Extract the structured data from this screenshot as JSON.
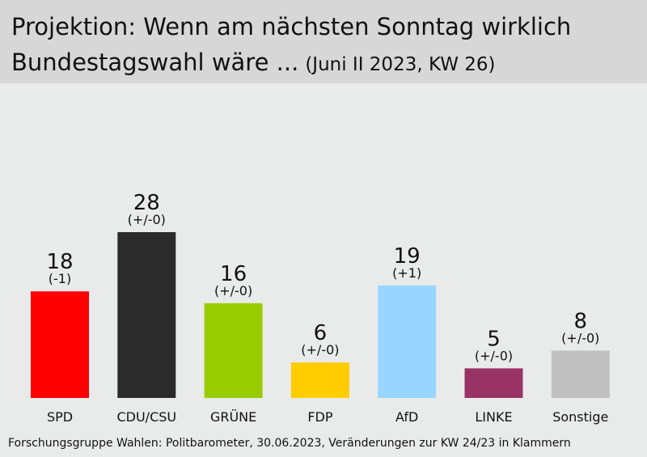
{
  "header": {
    "title_line1": "Projektion: Wenn am nächsten Sonntag wirklich",
    "title_line2": "Bundestagswahl wäre ...",
    "subtitle": "(Juni II 2023, KW 26)"
  },
  "footer": {
    "source": "Forschungsgruppe Wahlen: Politbarometer, 30.06.2023, Veränderungen zur KW 24/23 in Klammern"
  },
  "chart_data": {
    "type": "bar",
    "title": "Projektion: Wenn am nächsten Sonntag wirklich Bundestagswahl wäre ...",
    "subtitle": "(Juni II 2023, KW 26)",
    "categories": [
      "SPD",
      "CDU/CSU",
      "GRÜNE",
      "FDP",
      "AfD",
      "LINKE",
      "Sonstige"
    ],
    "values": [
      18,
      28,
      16,
      6,
      19,
      5,
      8
    ],
    "changes": [
      "(-1)",
      "(+/-0)",
      "(+/-0)",
      "(+/-0)",
      "(+1)",
      "(+/-0)",
      "(+/-0)"
    ],
    "colors": [
      "#ff0000",
      "#2b2b2b",
      "#99cc00",
      "#ffcc00",
      "#99d6ff",
      "#993366",
      "#c0c0c0"
    ],
    "xlabel": "",
    "ylabel": "",
    "ylim": [
      0,
      28
    ],
    "grid": false,
    "legend": "none"
  }
}
